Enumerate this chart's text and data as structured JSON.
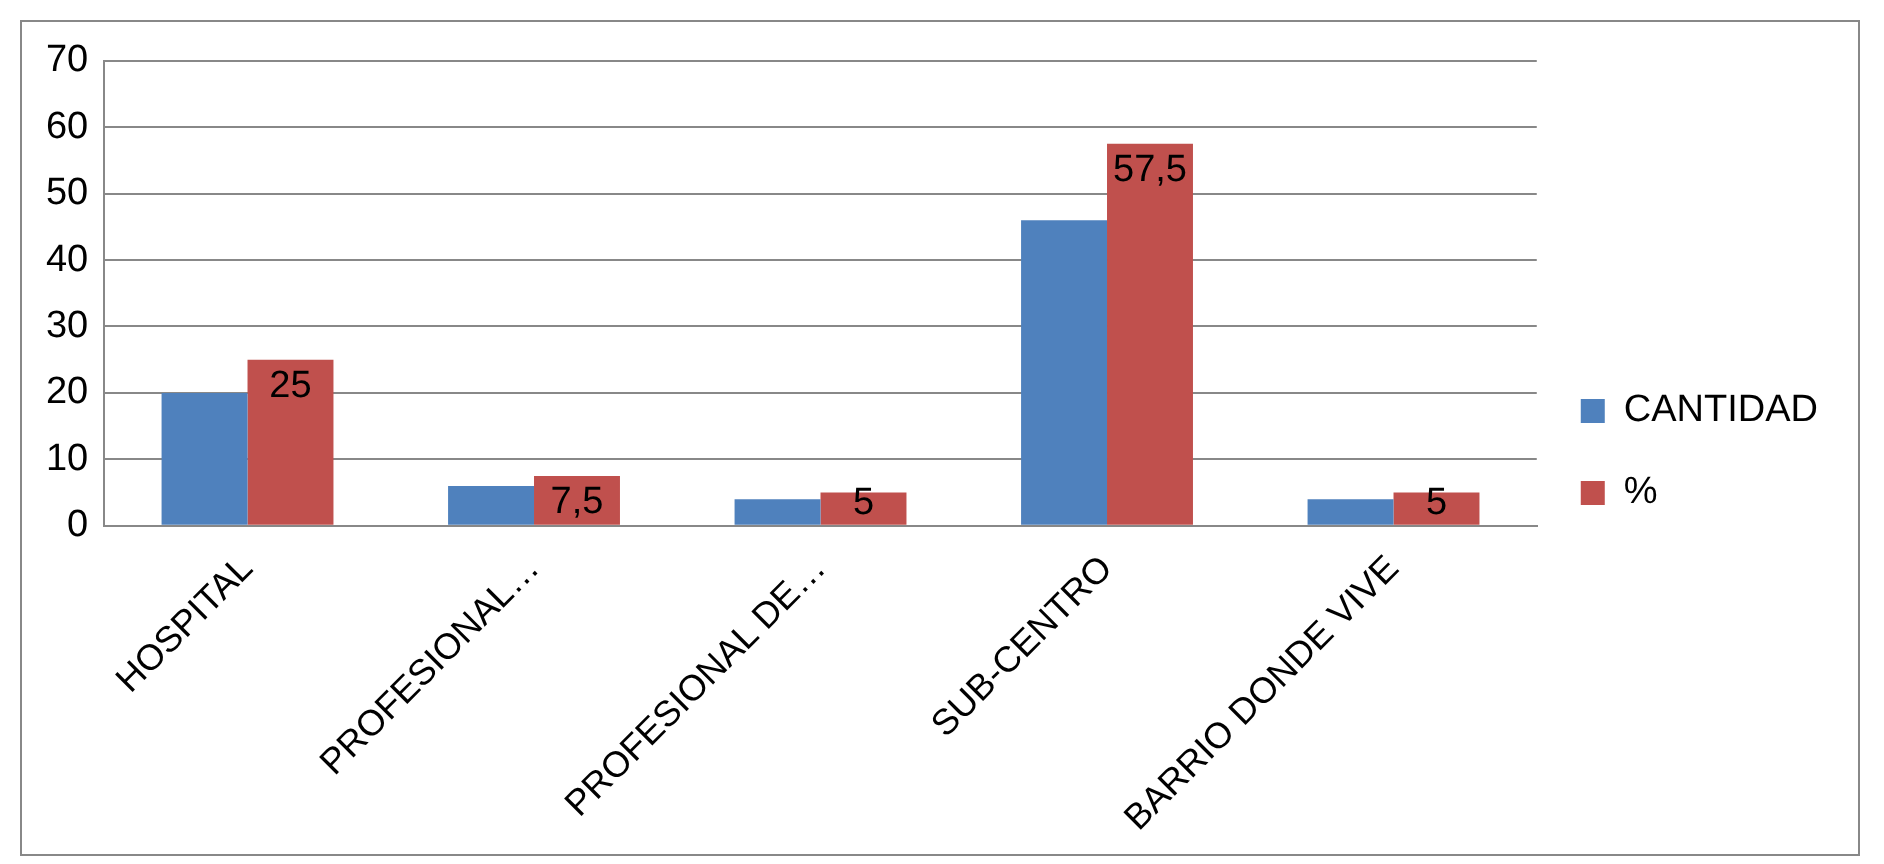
{
  "chart_data": {
    "type": "bar",
    "categories": [
      "HOSPITAL",
      "PROFESIONAL…",
      "PROFESIONAL DE…",
      "SUB-CENTRO",
      "BARRIO DONDE VIVE"
    ],
    "series": [
      {
        "name": "CANTIDAD",
        "color": "#4f81bd",
        "values": [
          20,
          6,
          4,
          46,
          4
        ]
      },
      {
        "name": "%",
        "color": "#c0504d",
        "values": [
          25,
          7.5,
          5,
          57.5,
          5
        ],
        "value_labels": [
          "25",
          "7,5",
          "5",
          "57,5",
          "5"
        ]
      }
    ],
    "ylim": [
      0,
      70
    ],
    "yticks": [
      0,
      10,
      20,
      30,
      40,
      50,
      60,
      70
    ],
    "grid": "y",
    "legend": "right"
  }
}
